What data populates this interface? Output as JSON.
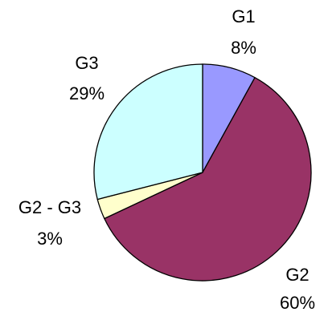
{
  "chart_data": {
    "type": "pie",
    "start_angle_deg": 0,
    "direction": "clockwise",
    "slices": [
      {
        "label": "G1",
        "percent_label": "8%",
        "value": 8,
        "color": "#9999ff"
      },
      {
        "label": "G2",
        "percent_label": "60%",
        "value": 60,
        "color": "#993366"
      },
      {
        "label": "G2 - G3",
        "percent_label": "3%",
        "value": 3,
        "color": "#ffffcc"
      },
      {
        "label": "G3",
        "percent_label": "29%",
        "value": 29,
        "color": "#ccffff"
      }
    ]
  }
}
